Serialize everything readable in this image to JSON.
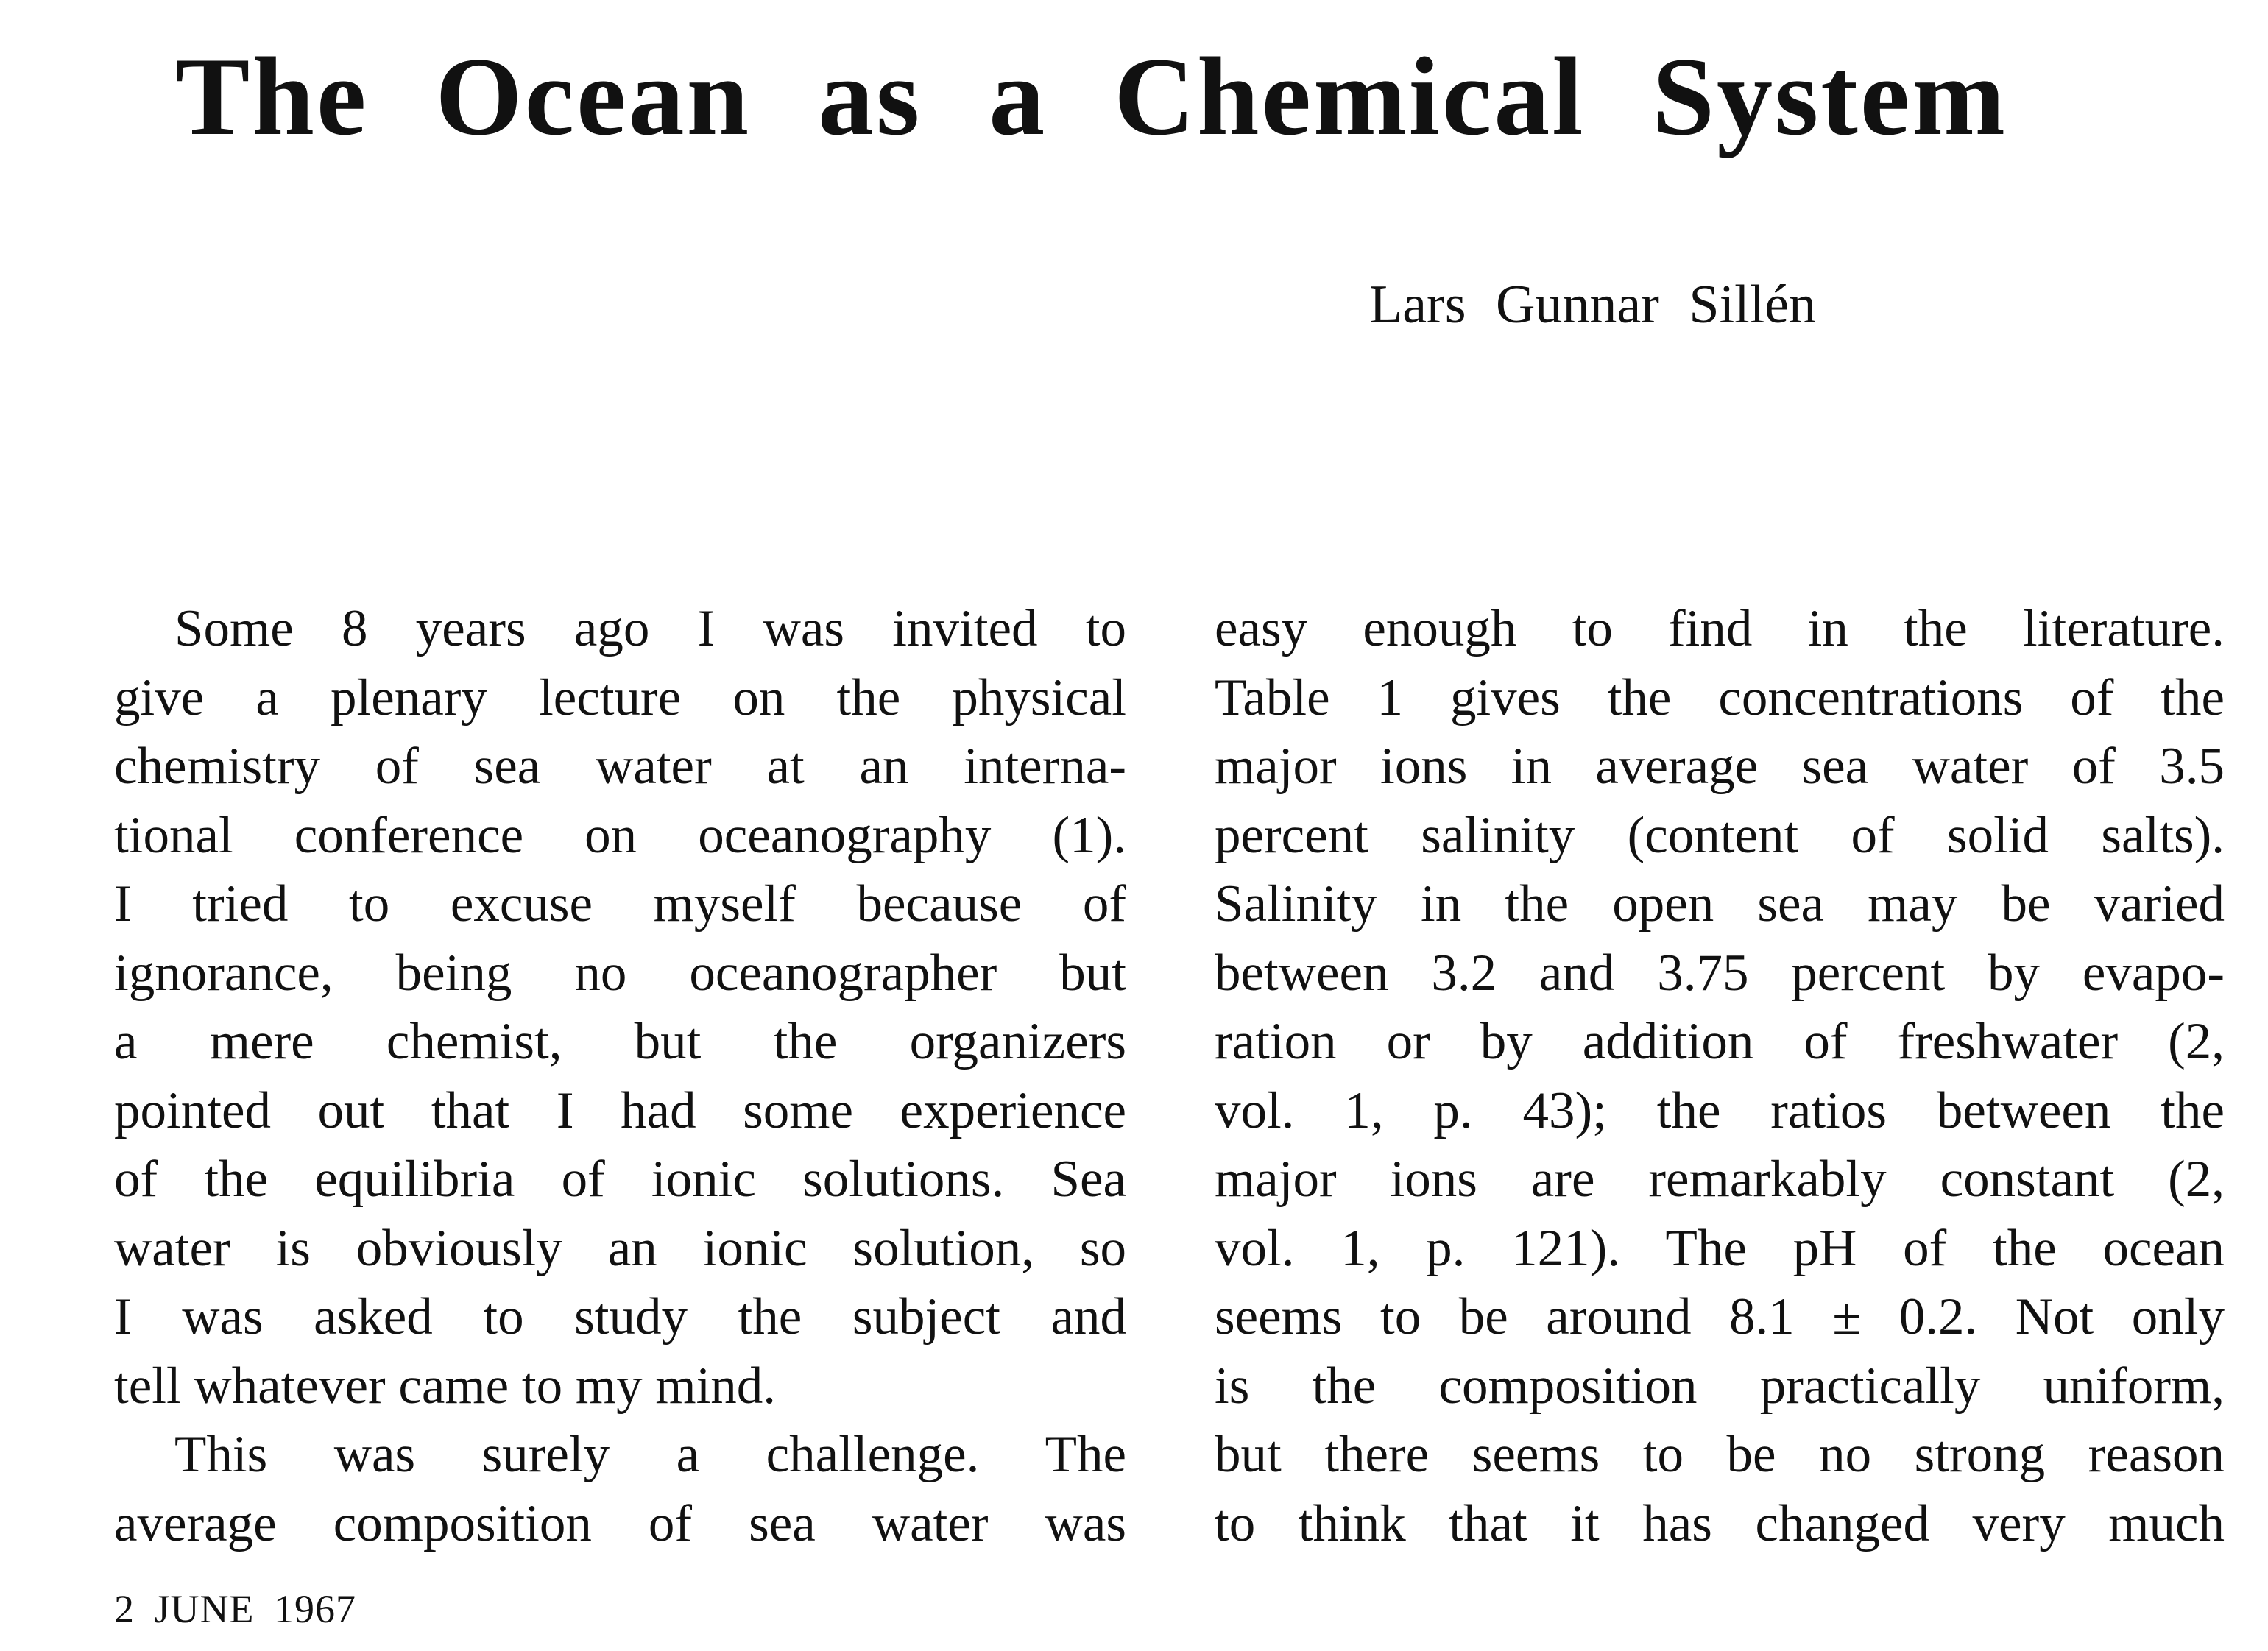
{
  "header": {
    "title": "The Ocean as a Chemical System",
    "author": "Lars Gunnar Sillén"
  },
  "left_column": {
    "lines": [
      "Some 8 years ago I was invited to",
      "give a plenary lecture on the physical",
      "chemistry of sea water at an interna-",
      "tional conference on oceanography (1).",
      "I tried to excuse myself because of",
      "ignorance, being no oceanographer but",
      "a mere chemist, but the organizers",
      "pointed out that I had some experience",
      "of the equilibria of ionic solutions. Sea",
      "water is obviously an ionic solution, so",
      "I was asked to study the subject and",
      "tell whatever came to my mind.",
      "This was surely a challenge. The",
      "average composition of sea water was"
    ]
  },
  "right_column": {
    "lines": [
      "easy enough to find in the literature.",
      "Table 1 gives the concentrations of the",
      "major ions in average sea water of 3.5",
      "percent salinity (content of solid salts).",
      "Salinity in the open sea may be varied",
      "between 3.2 and 3.75 percent by evapo-",
      "ration or by addition of freshwater (2,",
      "vol. 1, p. 43); the ratios between the",
      "major ions are remarkably constant (2,",
      "vol. 1, p. 121). The pH of the ocean",
      "seems to be around 8.1 ± 0.2. Not only",
      "is the composition practically uniform,",
      "but there seems to be no strong reason",
      "to think that it has changed very much"
    ]
  },
  "footer": {
    "date": "2 JUNE 1967"
  }
}
